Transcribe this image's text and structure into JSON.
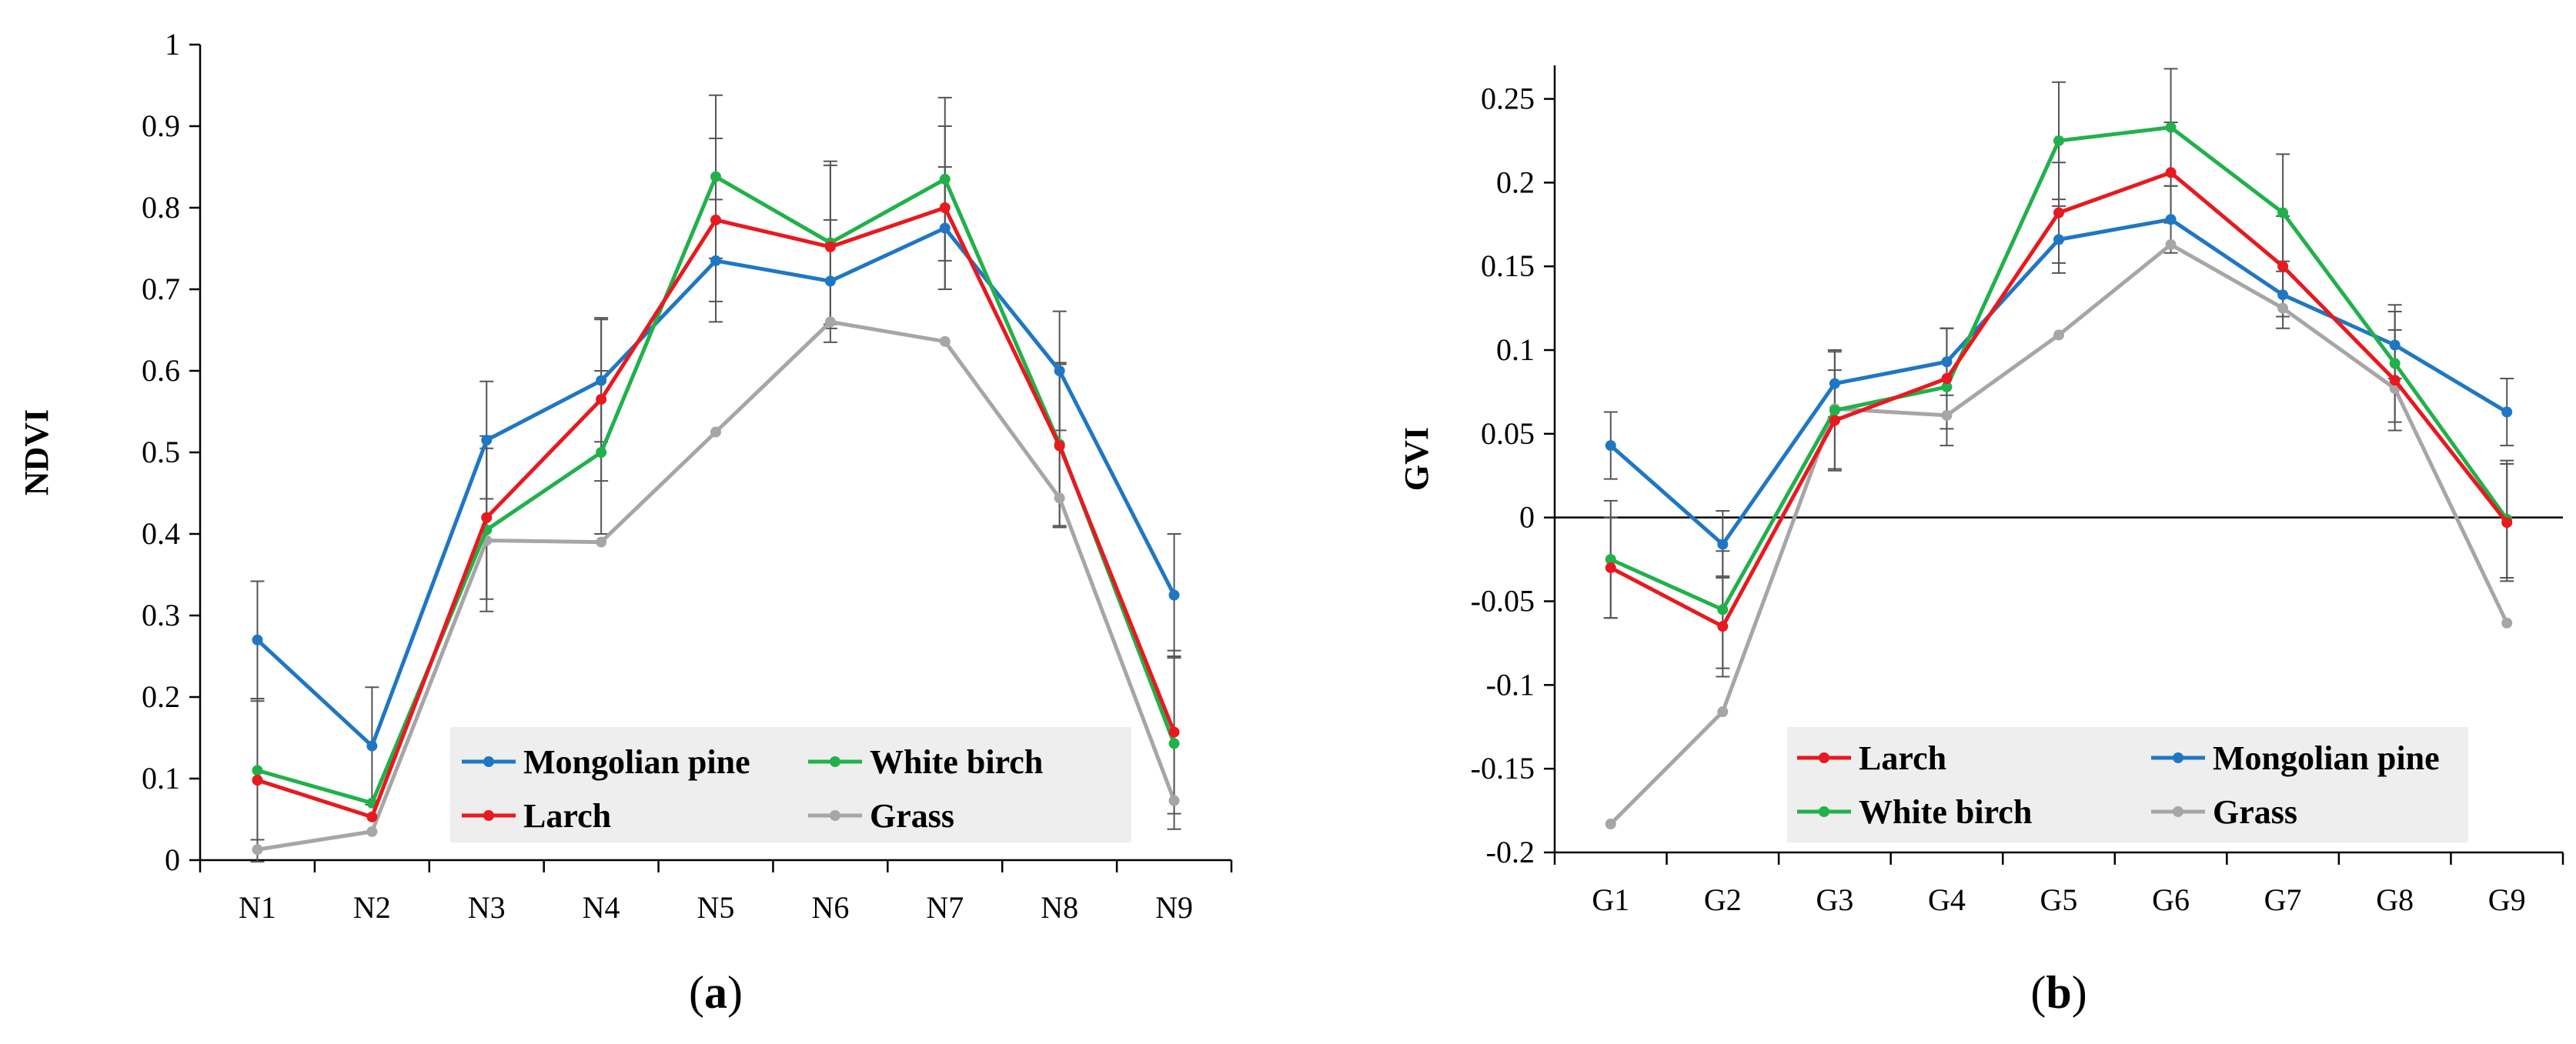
{
  "chart_data": [
    {
      "type": "line",
      "panel_label": "a",
      "xlabel": "",
      "ylabel": "NDVI",
      "categories": [
        "N1",
        "N2",
        "N3",
        "N4",
        "N5",
        "N6",
        "N7",
        "N8",
        "N9"
      ],
      "ylim": [
        0,
        1
      ],
      "yticks": [
        0,
        0.1,
        0.2,
        0.3,
        0.4,
        0.5,
        0.6,
        0.7,
        0.8,
        0.9,
        1
      ],
      "ytick_labels": [
        "0",
        "0.1",
        "0.2",
        "0.3",
        "0.4",
        "0.5",
        "0.6",
        "0.7",
        "0.8",
        "0.9",
        "1"
      ],
      "grid": false,
      "legend_position": "bottom-right",
      "series": [
        {
          "name": "Mongolian pine",
          "color": "#1f77c4",
          "values": [
            0.27,
            0.14,
            0.515,
            0.588,
            0.735,
            0.71,
            0.775,
            0.6,
            0.325
          ],
          "errors": [
            0.072,
            0.072,
            0.072,
            0.075,
            0.075,
            0.075,
            0.075,
            0.073,
            0.075
          ]
        },
        {
          "name": "White birch",
          "color": "#21b14b",
          "values": [
            0.11,
            0.07,
            0.405,
            0.5,
            0.838,
            0.757,
            0.835,
            0.51,
            0.143
          ],
          "errors": [
            0.085,
            0.0,
            0.1,
            0.1,
            0.1,
            0.1,
            0.1,
            0.1,
            0.105
          ]
        },
        {
          "name": "Larch",
          "color": "#e8191f",
          "values": [
            0.098,
            0.053,
            0.42,
            0.565,
            0.785,
            0.752,
            0.8,
            0.508,
            0.157
          ],
          "errors": [
            0.1,
            0.0,
            0.1,
            0.1,
            0.1,
            0.1,
            0.1,
            0.1,
            0.1
          ]
        },
        {
          "name": "Grass",
          "color": "#a6a6a6",
          "values": [
            0.013,
            0.035,
            0.392,
            0.39,
            0.525,
            0.66,
            0.636,
            0.444,
            0.073
          ],
          "errors": [
            0.0,
            0.0,
            0.0,
            0.0,
            0.0,
            0.0,
            0.0,
            0.0,
            0.0
          ]
        }
      ],
      "legend_order": [
        "Mongolian pine",
        "White birch",
        "Larch",
        "Grass"
      ]
    },
    {
      "type": "line",
      "panel_label": "b",
      "xlabel": "",
      "ylabel": "GVI",
      "categories": [
        "G1",
        "G2",
        "G3",
        "G4",
        "G5",
        "G6",
        "G7",
        "G8",
        "G9"
      ],
      "ylim": [
        -0.2,
        0.27
      ],
      "yticks": [
        -0.2,
        -0.15,
        -0.1,
        -0.05,
        0,
        0.05,
        0.1,
        0.15,
        0.2,
        0.25
      ],
      "ytick_labels": [
        "-0.2",
        "-0.15",
        "-0.1",
        "-0.05",
        "0",
        "0.05",
        "0.1",
        "0.15",
        "0.2",
        "0.25"
      ],
      "grid": false,
      "legend_position": "bottom-center",
      "series": [
        {
          "name": "Larch",
          "color": "#e8191f",
          "values": [
            -0.03,
            -0.065,
            0.058,
            0.083,
            0.182,
            0.206,
            0.15,
            0.082,
            -0.003
          ],
          "errors": [
            0.03,
            0.03,
            0.03,
            0.03,
            0.03,
            0.03,
            0.03,
            0.03,
            0.035
          ]
        },
        {
          "name": "Mongolian pine",
          "color": "#1f77c4",
          "values": [
            0.043,
            -0.016,
            0.08,
            0.093,
            0.166,
            0.178,
            0.133,
            0.103,
            0.063
          ],
          "errors": [
            0.02,
            0.02,
            0.02,
            0.02,
            0.02,
            0.02,
            0.02,
            0.02,
            0.02
          ]
        },
        {
          "name": "White birch",
          "color": "#21b14b",
          "values": [
            -0.025,
            -0.055,
            0.064,
            0.078,
            0.225,
            0.233,
            0.182,
            0.092,
            -0.001
          ],
          "errors": [
            0.035,
            0.035,
            0.035,
            0.035,
            0.035,
            0.035,
            0.035,
            0.035,
            0.035
          ]
        },
        {
          "name": "Grass",
          "color": "#a6a6a6",
          "values": [
            -0.183,
            -0.116,
            0.065,
            0.061,
            0.109,
            0.163,
            0.125,
            0.077,
            -0.063
          ],
          "errors": [
            0,
            0,
            0,
            0,
            0,
            0,
            0,
            0,
            0
          ]
        }
      ],
      "legend_order": [
        "Larch",
        "Mongolian pine",
        "White birch",
        "Grass"
      ]
    }
  ]
}
